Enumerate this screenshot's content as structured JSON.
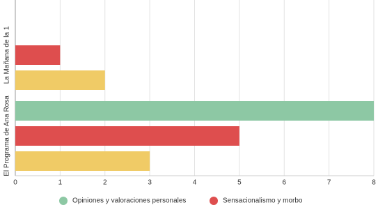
{
  "chart_data": {
    "type": "hbar",
    "categories": [
      "La Mañana de la 1",
      "El Programa de Ana Rosa"
    ],
    "series": [
      {
        "name": "Opiniones y valoraciones personales",
        "color": "#8dc8a4",
        "values": [
          0,
          8
        ]
      },
      {
        "name": "Sensacionalismo y morbo",
        "color": "#de4e4e",
        "values": [
          1,
          5
        ]
      },
      {
        "color": "#f0cb66",
        "values": [
          2,
          3
        ]
      }
    ],
    "xlim": [
      0,
      8
    ],
    "xticks": [
      0,
      1,
      2,
      3,
      4,
      5,
      6,
      7,
      8
    ],
    "grid": true
  }
}
